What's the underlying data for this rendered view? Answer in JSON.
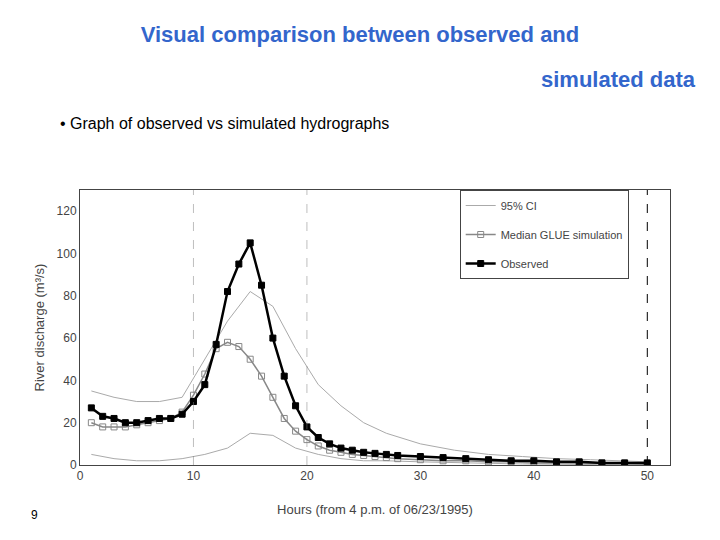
{
  "chart_data": {
    "type": "line",
    "title": "Visual comparison between observed and",
    "subtitle": "simulated data",
    "title_color": "#3366cc",
    "annotations": [
      "• Graph of observed vs simulated hydrographs",
      "9"
    ],
    "x_label": "Hours (from 4 p.m. of 06/23/1995)",
    "y_label": "River discharge (m³/s)",
    "xlim": [
      0,
      52
    ],
    "ylim": [
      0,
      130
    ],
    "xticks": [
      0,
      10,
      20,
      30,
      40,
      50
    ],
    "yticks": [
      0,
      20,
      40,
      60,
      80,
      100,
      120
    ],
    "grid": false,
    "legend": "upper right",
    "series": [
      {
        "name": "95% CI",
        "color": "#aaaaaa",
        "line_style": "solid",
        "x": [
          1,
          3,
          5,
          7,
          9,
          11,
          13,
          15,
          17,
          19,
          21,
          23,
          25,
          27,
          30,
          33,
          36,
          39,
          42,
          45,
          48,
          50
        ],
        "upper": [
          35,
          32,
          30,
          30,
          32,
          50,
          68,
          82,
          75,
          55,
          38,
          28,
          20,
          15,
          10,
          7,
          5,
          4,
          3,
          2.5,
          2,
          1.5
        ],
        "lower": [
          5,
          3,
          2,
          2,
          3,
          5,
          8,
          15,
          14,
          8,
          5,
          3,
          2,
          2,
          1.5,
          1,
          0.8,
          0.5,
          0.3,
          0.2,
          0.1,
          0
        ]
      },
      {
        "name": "Median GLUE simulation",
        "color": "#888888",
        "marker": "square-open",
        "line_style": "solid",
        "x": [
          1,
          2,
          3,
          4,
          5,
          6,
          7,
          8,
          9,
          10,
          11,
          12,
          13,
          14,
          15,
          16,
          17,
          18,
          19,
          20,
          21,
          22,
          23,
          24,
          25,
          26,
          27,
          28,
          30,
          32,
          34,
          36,
          38,
          40,
          42,
          44,
          46,
          48,
          50
        ],
        "values": [
          20,
          18,
          18,
          18,
          19,
          20,
          21,
          22,
          25,
          33,
          43,
          55,
          58,
          56,
          50,
          42,
          32,
          22,
          16,
          12,
          9,
          7,
          6,
          5,
          4.5,
          4,
          3.5,
          3,
          2.5,
          2,
          2,
          1.5,
          1.5,
          1,
          1,
          1,
          0.8,
          0.8,
          0.5
        ]
      },
      {
        "name": "Observed",
        "color": "#000000",
        "marker": "square",
        "line_style": "solid",
        "x": [
          1,
          2,
          3,
          4,
          5,
          6,
          7,
          8,
          9,
          10,
          11,
          12,
          13,
          14,
          15,
          16,
          17,
          18,
          19,
          20,
          21,
          22,
          23,
          24,
          25,
          26,
          27,
          28,
          30,
          32,
          34,
          36,
          38,
          40,
          42,
          44,
          46,
          48,
          50
        ],
        "values": [
          27,
          23,
          22,
          20,
          20,
          21,
          22,
          22,
          24,
          30,
          38,
          57,
          82,
          95,
          105,
          85,
          60,
          42,
          28,
          18,
          13,
          10,
          8,
          7,
          6,
          5.5,
          5,
          4.5,
          4,
          3.5,
          3,
          2.5,
          2,
          2,
          1.5,
          1.5,
          1,
          1,
          1
        ]
      }
    ],
    "vlines": [
      {
        "x": 50,
        "color": "#000000",
        "line_style": "dashed"
      },
      {
        "x": 10,
        "color": "#808080",
        "line_style": "dashed"
      },
      {
        "x": 20,
        "color": "#808080",
        "line_style": "dashed"
      }
    ]
  }
}
